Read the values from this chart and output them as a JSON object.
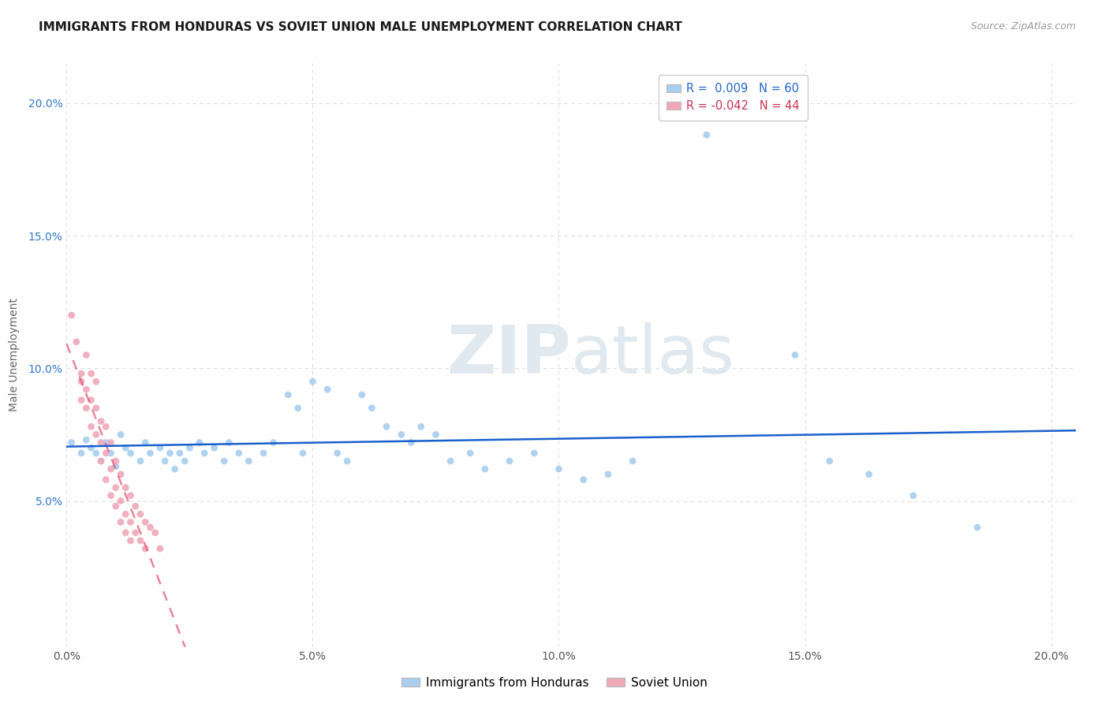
{
  "title": "IMMIGRANTS FROM HONDURAS VS SOVIET UNION MALE UNEMPLOYMENT CORRELATION CHART",
  "source": "Source: ZipAtlas.com",
  "ylabel": "Male Unemployment",
  "watermark": "ZIPatlas",
  "legend_entries": [
    {
      "label": "R =  0.009   N = 60",
      "color": "#a8cef0"
    },
    {
      "label": "R = -0.042   N = 44",
      "color": "#f0a8b8"
    }
  ],
  "legend_series": [
    "Immigrants from Honduras",
    "Soviet Union"
  ],
  "xlim": [
    0.0,
    0.205
  ],
  "ylim": [
    -0.005,
    0.215
  ],
  "yticks": [
    0.05,
    0.1,
    0.15,
    0.2
  ],
  "ytick_labels": [
    "5.0%",
    "10.0%",
    "15.0%",
    "20.0%"
  ],
  "xticks": [
    0.0,
    0.05,
    0.1,
    0.15,
    0.2
  ],
  "xtick_labels": [
    "0.0%",
    "5.0%",
    "10.0%",
    "15.0%",
    "20.0%"
  ],
  "grid_color": "#dddddd",
  "background_color": "#ffffff",
  "honduras_color": "#a8cef0",
  "soviet_color": "#f0a8b8",
  "honduras_line_color": "#1a5fcc",
  "soviet_line_color": "#e05070",
  "honduras_scatter": [
    [
      0.001,
      0.072
    ],
    [
      0.003,
      0.068
    ],
    [
      0.004,
      0.073
    ],
    [
      0.005,
      0.07
    ],
    [
      0.006,
      0.068
    ],
    [
      0.007,
      0.065
    ],
    [
      0.008,
      0.072
    ],
    [
      0.009,
      0.068
    ],
    [
      0.01,
      0.063
    ],
    [
      0.011,
      0.075
    ],
    [
      0.012,
      0.07
    ],
    [
      0.013,
      0.068
    ],
    [
      0.015,
      0.065
    ],
    [
      0.016,
      0.072
    ],
    [
      0.017,
      0.068
    ],
    [
      0.019,
      0.07
    ],
    [
      0.02,
      0.065
    ],
    [
      0.021,
      0.068
    ],
    [
      0.022,
      0.062
    ],
    [
      0.023,
      0.068
    ],
    [
      0.024,
      0.065
    ],
    [
      0.025,
      0.07
    ],
    [
      0.027,
      0.072
    ],
    [
      0.028,
      0.068
    ],
    [
      0.03,
      0.07
    ],
    [
      0.032,
      0.065
    ],
    [
      0.033,
      0.072
    ],
    [
      0.035,
      0.068
    ],
    [
      0.037,
      0.065
    ],
    [
      0.04,
      0.068
    ],
    [
      0.042,
      0.072
    ],
    [
      0.045,
      0.09
    ],
    [
      0.047,
      0.085
    ],
    [
      0.048,
      0.068
    ],
    [
      0.05,
      0.095
    ],
    [
      0.053,
      0.092
    ],
    [
      0.055,
      0.068
    ],
    [
      0.057,
      0.065
    ],
    [
      0.06,
      0.09
    ],
    [
      0.062,
      0.085
    ],
    [
      0.065,
      0.078
    ],
    [
      0.068,
      0.075
    ],
    [
      0.07,
      0.072
    ],
    [
      0.072,
      0.078
    ],
    [
      0.075,
      0.075
    ],
    [
      0.078,
      0.065
    ],
    [
      0.082,
      0.068
    ],
    [
      0.085,
      0.062
    ],
    [
      0.09,
      0.065
    ],
    [
      0.095,
      0.068
    ],
    [
      0.1,
      0.062
    ],
    [
      0.105,
      0.058
    ],
    [
      0.11,
      0.06
    ],
    [
      0.115,
      0.065
    ],
    [
      0.13,
      0.188
    ],
    [
      0.148,
      0.105
    ],
    [
      0.155,
      0.065
    ],
    [
      0.163,
      0.06
    ],
    [
      0.172,
      0.052
    ],
    [
      0.185,
      0.04
    ]
  ],
  "soviet_scatter": [
    [
      0.001,
      0.12
    ],
    [
      0.002,
      0.11
    ],
    [
      0.003,
      0.098
    ],
    [
      0.003,
      0.095
    ],
    [
      0.003,
      0.088
    ],
    [
      0.004,
      0.105
    ],
    [
      0.004,
      0.092
    ],
    [
      0.004,
      0.085
    ],
    [
      0.005,
      0.098
    ],
    [
      0.005,
      0.088
    ],
    [
      0.005,
      0.078
    ],
    [
      0.006,
      0.095
    ],
    [
      0.006,
      0.085
    ],
    [
      0.006,
      0.075
    ],
    [
      0.007,
      0.08
    ],
    [
      0.007,
      0.072
    ],
    [
      0.007,
      0.065
    ],
    [
      0.008,
      0.078
    ],
    [
      0.008,
      0.068
    ],
    [
      0.008,
      0.058
    ],
    [
      0.009,
      0.072
    ],
    [
      0.009,
      0.062
    ],
    [
      0.009,
      0.052
    ],
    [
      0.01,
      0.065
    ],
    [
      0.01,
      0.055
    ],
    [
      0.01,
      0.048
    ],
    [
      0.011,
      0.06
    ],
    [
      0.011,
      0.05
    ],
    [
      0.011,
      0.042
    ],
    [
      0.012,
      0.055
    ],
    [
      0.012,
      0.045
    ],
    [
      0.012,
      0.038
    ],
    [
      0.013,
      0.052
    ],
    [
      0.013,
      0.042
    ],
    [
      0.013,
      0.035
    ],
    [
      0.014,
      0.048
    ],
    [
      0.014,
      0.038
    ],
    [
      0.015,
      0.045
    ],
    [
      0.015,
      0.035
    ],
    [
      0.016,
      0.042
    ],
    [
      0.016,
      0.032
    ],
    [
      0.017,
      0.04
    ],
    [
      0.018,
      0.038
    ],
    [
      0.019,
      0.032
    ]
  ],
  "title_fontsize": 11,
  "axis_label_fontsize": 10,
  "tick_fontsize": 10,
  "source_fontsize": 9
}
